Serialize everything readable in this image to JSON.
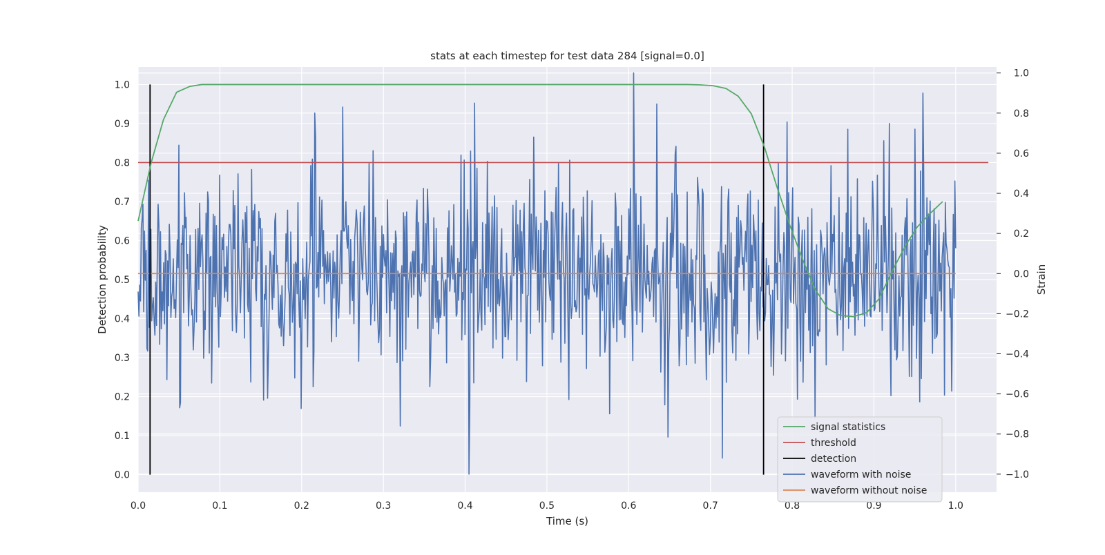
{
  "chart_data": {
    "type": "line",
    "title": "stats at each timestep for test data 284 [signal=0.0]",
    "xlabel": "Time (s)",
    "ylabel": "Detection probability",
    "y2label": "Strain",
    "xlim": [
      0.0,
      1.05
    ],
    "ylim": [
      -0.045,
      1.045
    ],
    "y2lim": [
      -1.09,
      1.03
    ],
    "xticks": [
      "0.0",
      "0.1",
      "0.2",
      "0.3",
      "0.4",
      "0.5",
      "0.6",
      "0.7",
      "0.8",
      "0.9",
      "1.0"
    ],
    "yticks": [
      "0.0",
      "0.1",
      "0.2",
      "0.3",
      "0.4",
      "0.5",
      "0.6",
      "0.7",
      "0.8",
      "0.9",
      "1.0"
    ],
    "y2ticks": [
      "−1.0",
      "−0.8",
      "−0.6",
      "−0.4",
      "−0.2",
      "0.0",
      "0.2",
      "0.4",
      "0.6",
      "0.8",
      "1.0"
    ],
    "background": "#eaeaf2",
    "grid": true,
    "legend_position": "lower-right",
    "series": [
      {
        "name": "signal statistics",
        "axis": "left",
        "color": "#55a868",
        "x": [
          0.0,
          0.016,
          0.031,
          0.047,
          0.063,
          0.078,
          0.094,
          0.2,
          0.4,
          0.6,
          0.672,
          0.688,
          0.703,
          0.719,
          0.734,
          0.75,
          0.766,
          0.781,
          0.797,
          0.813,
          0.828,
          0.844,
          0.859,
          0.875,
          0.891,
          0.906,
          0.922,
          0.938,
          0.953,
          0.969,
          0.984
        ],
        "y": [
          0.65,
          0.8,
          0.91,
          0.98,
          0.995,
          1.0,
          1.0,
          1.0,
          1.0,
          1.0,
          1.0,
          0.999,
          0.997,
          0.99,
          0.97,
          0.925,
          0.84,
          0.74,
          0.64,
          0.55,
          0.475,
          0.425,
          0.408,
          0.405,
          0.415,
          0.45,
          0.52,
          0.585,
          0.635,
          0.67,
          0.7
        ]
      },
      {
        "name": "threshold",
        "axis": "left",
        "color": "#c44e52",
        "x": [
          0.0,
          1.04
        ],
        "y": [
          0.8,
          0.8
        ]
      },
      {
        "name": "detection",
        "axis": "left",
        "color": "#000000",
        "segments": [
          {
            "x": 0.0146,
            "y": [
              0.0,
              1.0
            ]
          },
          {
            "x": 0.765,
            "y": [
              0.0,
              1.0
            ]
          }
        ]
      },
      {
        "name": "waveform with noise",
        "axis": "right",
        "color": "#4c72b0",
        "x_range": [
          0.0,
          1.0
        ],
        "n_points": 1024,
        "approx_std": 0.25,
        "y_range": [
          -1.0,
          1.0
        ],
        "notable_points": [
          {
            "x": 0.05,
            "y": 0.64
          },
          {
            "x": 0.216,
            "y": 0.8
          },
          {
            "x": 0.25,
            "y": 0.83
          },
          {
            "x": 0.412,
            "y": 0.85
          },
          {
            "x": 0.405,
            "y": -1.0
          },
          {
            "x": 0.606,
            "y": 1.0
          },
          {
            "x": 0.715,
            "y": -0.92
          },
          {
            "x": 0.828,
            "y": -0.72
          },
          {
            "x": 0.95,
            "y": 0.72
          }
        ]
      },
      {
        "name": "waveform without noise",
        "axis": "right",
        "color": "#dd8452",
        "x": [
          0.0,
          1.0
        ],
        "y": [
          0.0,
          0.0
        ]
      }
    ]
  }
}
